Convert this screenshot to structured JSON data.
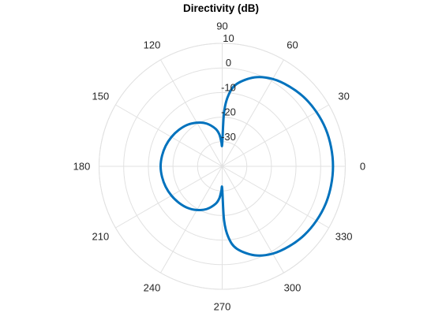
{
  "chart_data": {
    "type": "polar-line",
    "title": "Directivity (dB)",
    "angle_unit": "deg",
    "theta_ticks": [
      0,
      30,
      60,
      90,
      120,
      150,
      180,
      210,
      240,
      270,
      300,
      330
    ],
    "theta_tick_labels": [
      "0",
      "30",
      "60",
      "90",
      "120",
      "150",
      "180",
      "210",
      "240",
      "270",
      "300",
      "330"
    ],
    "r_ticks": [
      -30,
      -20,
      -10,
      0,
      10
    ],
    "r_tick_labels": [
      "-30",
      "-20",
      "-10",
      "0",
      "10"
    ],
    "rlim": [
      -40,
      10
    ],
    "grid": true,
    "legend": "none",
    "series": [
      {
        "color": "#0072BD",
        "theta": [
          0,
          10,
          20,
          30,
          40,
          50,
          60,
          70,
          80,
          85,
          88,
          90,
          92,
          95,
          100,
          110,
          120,
          130,
          140,
          150,
          160,
          170,
          180,
          190,
          200,
          210,
          220,
          230,
          240,
          250,
          260,
          265,
          268,
          270,
          272,
          275,
          280,
          290,
          300,
          310,
          320,
          330,
          340,
          350,
          360
        ],
        "r": [
          5,
          4.9,
          4.7,
          4.2,
          3.5,
          2.4,
          1,
          -1.5,
          -6,
          -11,
          -18,
          -31,
          -30,
          -27,
          -24.5,
          -21.5,
          -19.5,
          -18,
          -17,
          -16.2,
          -15.6,
          -15.2,
          -15,
          -15.2,
          -15.6,
          -16.2,
          -17,
          -18,
          -19.5,
          -21.5,
          -24.5,
          -27,
          -30,
          -31,
          -18,
          -11,
          -6,
          -1.5,
          1,
          2.4,
          3.5,
          4.2,
          4.7,
          4.9,
          5
        ]
      }
    ]
  }
}
